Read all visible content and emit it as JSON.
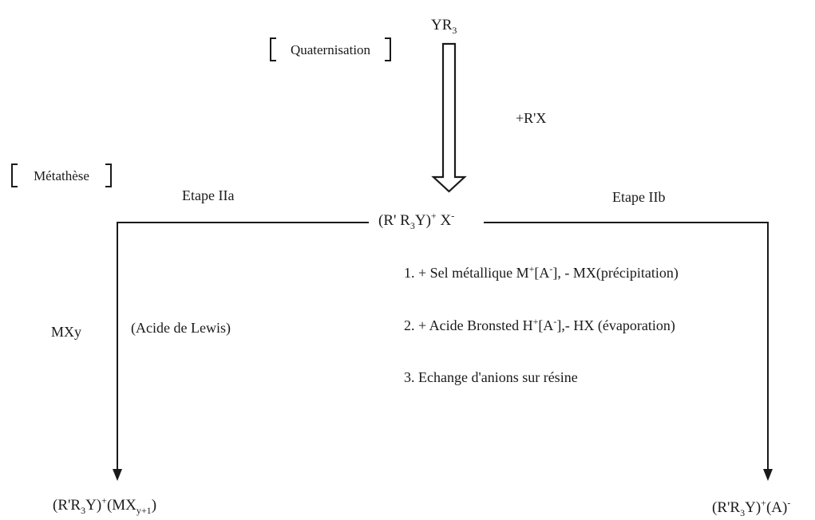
{
  "reagent_top": {
    "main": "YR",
    "sub": "3"
  },
  "step_quaternisation": "Quaternisation",
  "reagent_add": "+R'X",
  "step_metathese": "Métathèse",
  "branch_left_label": "Etape IIa",
  "branch_right_label": "Etape IIb",
  "intermediate": {
    "a": "(R' R",
    "a_sub": "3",
    "b": "Y)",
    "b_sup": "+",
    "c": " X",
    "c_sup": "-"
  },
  "right_options": [
    {
      "pre": "1. + Sel métallique M",
      "sup1": "+",
      "mid": "[A",
      "sup2": "-",
      "post": "], - MX(précipitation)"
    },
    {
      "pre": "2. + Acide Bronsted H",
      "sup1": "+",
      "mid": "[A",
      "sup2": "-",
      "post": "],- HX (évaporation)"
    },
    {
      "pre": "3. Echange d'anions sur résine",
      "sup1": "",
      "mid": "",
      "sup2": "",
      "post": ""
    }
  ],
  "left_reagent": "MXy",
  "left_reagent_note": "(Acide de Lewis)",
  "product_left": {
    "a": "(R'R",
    "a_sub": "3",
    "b": "Y)",
    "b_sup": "+",
    "c": "(MX",
    "c_sub": "y+1",
    "d": ")"
  },
  "product_right": {
    "a": "(R'R",
    "a_sub": "3",
    "b": "Y)",
    "b_sup": "+",
    "c": "(A)",
    "c_sup": "-"
  }
}
